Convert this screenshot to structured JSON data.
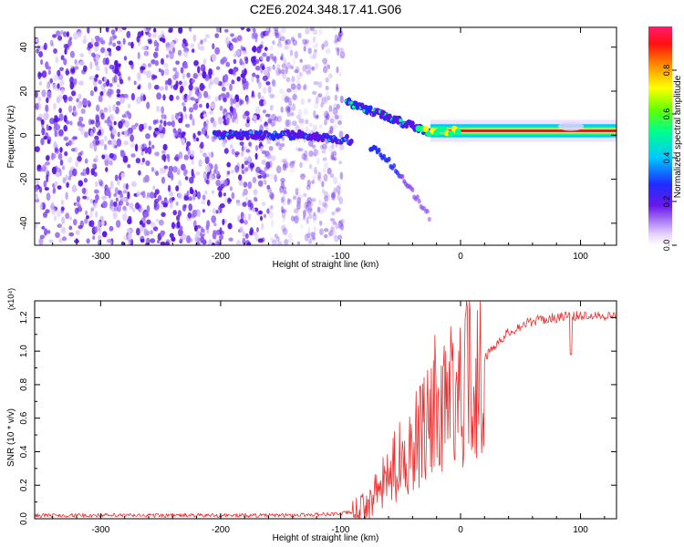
{
  "figure_title": "C2E6.2024.348.17.41.G06",
  "colors": {
    "snr_line": "#ee3030",
    "trace_core": "#d21e1e",
    "noise": "#5a14e6"
  },
  "chart_data": [
    {
      "type": "heatmap",
      "xlabel": "Height of straight line (km)",
      "ylabel": "Frequency (Hz)",
      "xlim": [
        -355,
        130
      ],
      "ylim": [
        -50,
        49
      ],
      "x_ticks": [
        -300,
        -200,
        -100,
        0,
        100
      ],
      "y_ticks": [
        -40,
        -20,
        0,
        20,
        40
      ],
      "colorbar": {
        "label": "Normalized spectral amplitude",
        "range": [
          0,
          1
        ],
        "ticks": [
          "0.0",
          "0.2",
          "0.4",
          "0.6",
          "0.8"
        ]
      },
      "features": [
        {
          "name": "noise field",
          "x_range": [
            -355,
            -98
          ],
          "y_range": [
            -50,
            49
          ],
          "amplitude": 0.15
        },
        {
          "name": "signal onset",
          "x_range": [
            -205,
            -90
          ],
          "freq_hz": 0,
          "amplitude": 0.4
        },
        {
          "name": "dispersed branch",
          "x_range": [
            -95,
            -20
          ],
          "freq_hz_start": 15,
          "freq_hz_end": 0,
          "amplitude": 0.35
        },
        {
          "name": "descending branch",
          "x_range": [
            -75,
            -25
          ],
          "freq_hz_start": -5,
          "freq_hz_end": -38,
          "amplitude": 0.2
        },
        {
          "name": "steady carrier",
          "x_range": [
            -25,
            130
          ],
          "freq_hz": 2,
          "amplitude": 0.9
        }
      ]
    },
    {
      "type": "line",
      "xlabel": "Height of straight line (km)",
      "ylabel": "SNR (10 * v/v)",
      "y_multiplier": "(x10⁴)",
      "xlim": [
        -355,
        130
      ],
      "ylim": [
        0,
        1.3
      ],
      "x_ticks": [
        -300,
        -200,
        -100,
        0,
        100
      ],
      "y_ticks": [
        "0.0",
        "0.2",
        "0.4",
        "0.6",
        "0.8",
        "1.0",
        "1.2"
      ],
      "x": [
        -355,
        -300,
        -200,
        -150,
        -120,
        -100,
        -90,
        -80,
        -70,
        -60,
        -50,
        -40,
        -30,
        -20,
        -10,
        0,
        10,
        20,
        30,
        40,
        50,
        60,
        70,
        80,
        90,
        100,
        110,
        120,
        130
      ],
      "values": [
        0.02,
        0.02,
        0.02,
        0.02,
        0.025,
        0.03,
        0.04,
        0.07,
        0.15,
        0.25,
        0.36,
        0.45,
        0.52,
        0.6,
        0.68,
        0.76,
        0.84,
        0.95,
        1.05,
        1.11,
        1.15,
        1.18,
        1.19,
        1.2,
        1.21,
        1.21,
        1.22,
        1.21,
        1.21
      ]
    }
  ]
}
